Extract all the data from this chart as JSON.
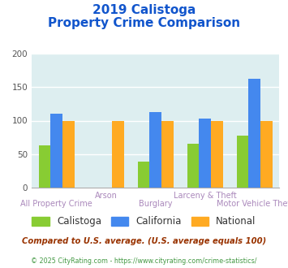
{
  "title_line1": "2019 Calistoga",
  "title_line2": "Property Crime Comparison",
  "categories": [
    "All Property Crime",
    "Arson",
    "Burglary",
    "Larceny & Theft",
    "Motor Vehicle Theft"
  ],
  "calistoga": [
    63,
    0,
    39,
    66,
    77
  ],
  "california": [
    110,
    0,
    113,
    103,
    163
  ],
  "national": [
    100,
    100,
    100,
    100,
    100
  ],
  "color_calistoga": "#88cc33",
  "color_california": "#4488ee",
  "color_national": "#ffaa22",
  "ylim": [
    0,
    200
  ],
  "yticks": [
    0,
    50,
    100,
    150,
    200
  ],
  "bg_color": "#ddeef0",
  "title_color": "#1155cc",
  "label_color": "#aa88bb",
  "legend_text_color": "#333333",
  "footer_text": "Compared to U.S. average. (U.S. average equals 100)",
  "copyright_text": "© 2025 CityRating.com - https://www.cityrating.com/crime-statistics/",
  "footer_color": "#993300",
  "copyright_color": "#449944"
}
